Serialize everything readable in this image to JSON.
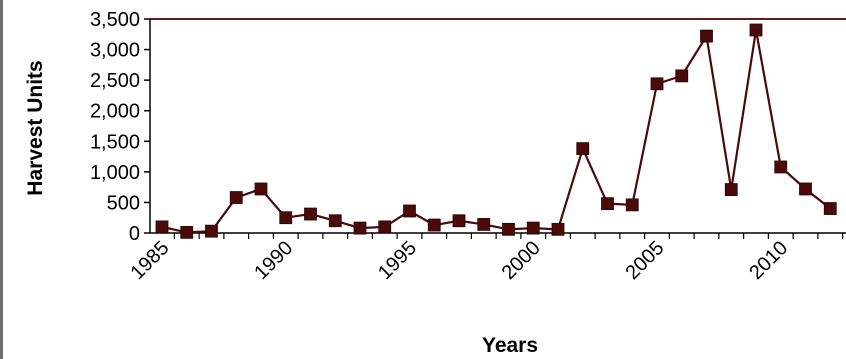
{
  "chart_data": {
    "type": "line",
    "title": "",
    "xlabel": "Years",
    "ylabel": "Harvest Units",
    "xlim": [
      1985,
      2012
    ],
    "ylim": [
      0,
      3500
    ],
    "yticks": [
      0,
      500,
      1000,
      1500,
      2000,
      2500,
      3000,
      3500
    ],
    "ytick_labels": [
      "0",
      "500",
      "1,000",
      "1,500",
      "2,000",
      "2,500",
      "3,000",
      "3,500"
    ],
    "xticks": [
      1985,
      1990,
      1995,
      2000,
      2005,
      2010
    ],
    "xtick_labels": [
      "1985",
      "1990",
      "1995",
      "2000",
      "2005",
      "2010"
    ],
    "grid": false,
    "legend": "none",
    "colors": {
      "series": "#4a0a0a",
      "marker": "#4a0a0a",
      "top_border": "#6b1a1a",
      "axis": "#000000",
      "frame_left": "#6f6f6f"
    },
    "series": [
      {
        "x": [
          1985,
          1986,
          1987,
          1988,
          1989,
          1990,
          1991,
          1992,
          1993,
          1994,
          1995,
          1996,
          1997,
          1998,
          1999,
          2000,
          2001,
          2002,
          2003,
          2004,
          2005,
          2006,
          2007,
          2008,
          2009,
          2010,
          2011,
          2012
        ],
        "values": [
          100,
          10,
          30,
          580,
          720,
          250,
          310,
          200,
          80,
          100,
          360,
          130,
          200,
          140,
          60,
          80,
          60,
          1380,
          480,
          460,
          2440,
          2570,
          3220,
          710,
          3320,
          1080,
          720,
          400
        ]
      }
    ]
  }
}
